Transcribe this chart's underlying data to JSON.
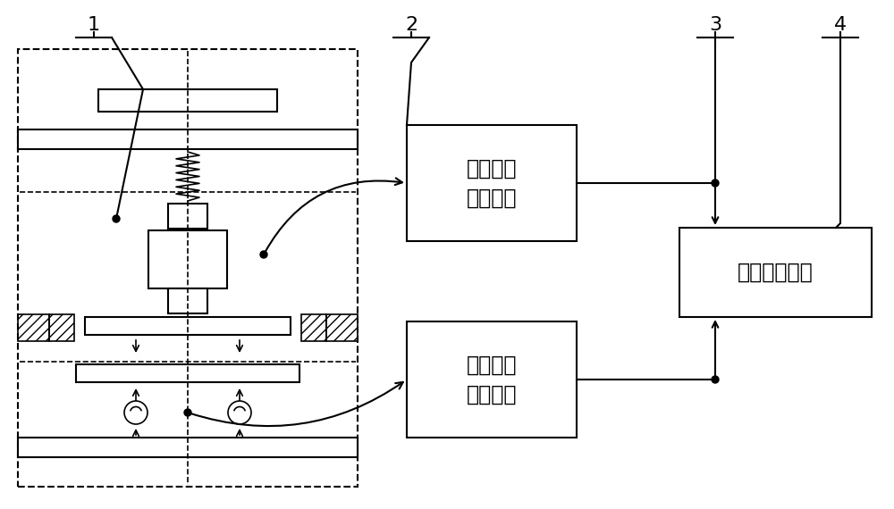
{
  "bg_color": "#ffffff",
  "line_color": "#000000",
  "box1_label": "载荷数据\n采集单元",
  "box2_label": "应变数据\n采集单元",
  "box3_label": "数据处理单元",
  "label1": "1",
  "label2": "2",
  "label3": "3",
  "label4": "4",
  "figsize": [
    10.0,
    5.7
  ],
  "dpi": 100
}
